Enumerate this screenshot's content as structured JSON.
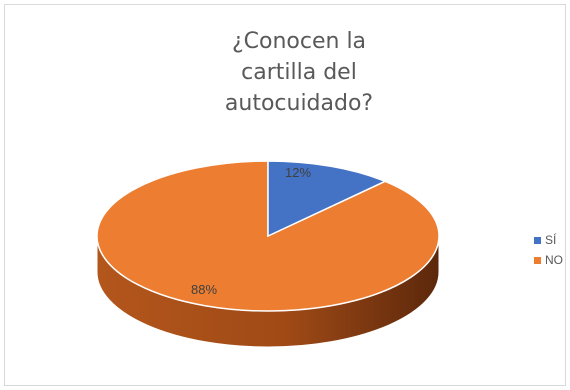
{
  "chart_data": {
    "type": "pie",
    "title": "¿Conocen la\ncartilla del\nautocuidado?",
    "categories": [
      "SÍ",
      "NO"
    ],
    "values": [
      12,
      88
    ],
    "data_labels": [
      "12%",
      "88%"
    ],
    "colors": [
      "#4472C4",
      "#ED7D31"
    ],
    "legend_position": "right",
    "3d": true
  }
}
